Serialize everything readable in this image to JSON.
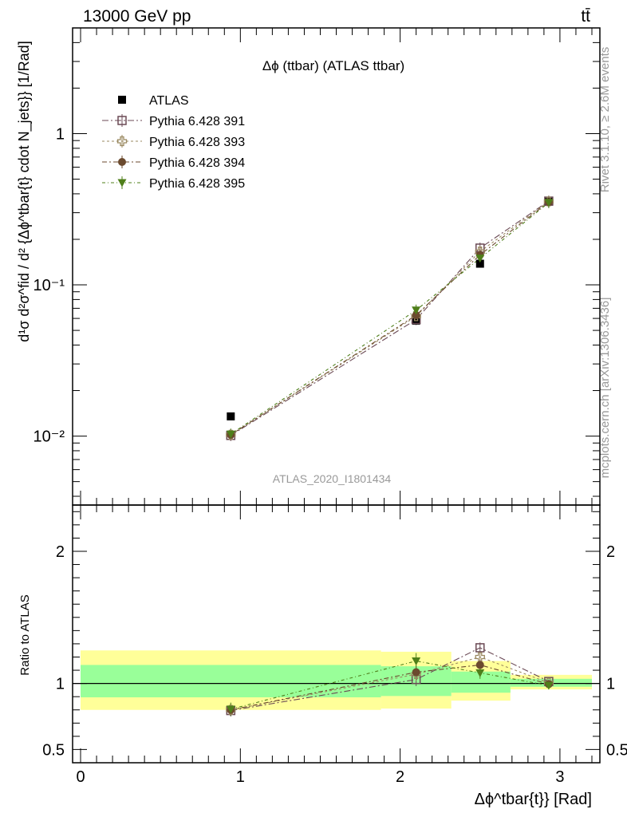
{
  "header": {
    "energy_label": "13000 GeV pp",
    "process_label": "tt̄"
  },
  "side_labels": {
    "rivet": "Rivet 3.1.10, ≥ 2.6M events",
    "mcplots": "mcplots.cern.ch [arXiv:1306.3436]"
  },
  "colors": {
    "atlas": "#000000",
    "p391": "#6b4a55",
    "p393": "#9b8a62",
    "p394": "#6b4a2e",
    "p395": "#4f7f1a",
    "band_green": "#99ff99",
    "band_yellow": "#ffff99"
  },
  "chart_data": [
    {
      "type": "scatter",
      "title": "Δϕ (ttbar) (ATLAS ttbar)",
      "watermark": "ATLAS_2020_I1801434",
      "ylabel": "d¹σ d²σ^fid / d² {Δϕ^tbar{t} cdot N_jets}} [1/Rad]",
      "yscale": "log",
      "ylim": [
        0.0035,
        5
      ],
      "xlim": [
        -0.05,
        3.25
      ],
      "y_ticks": [
        "1",
        "10⁻¹",
        "10⁻²"
      ],
      "x": [
        0.94,
        2.1,
        2.5,
        2.93
      ],
      "legend_location": "top-left",
      "series": [
        {
          "name": "ATLAS",
          "marker": "square-filled",
          "values": [
            0.0135,
            0.058,
            0.138,
            0.355
          ]
        },
        {
          "name": "Pythia 6.428 391",
          "marker": "square-open",
          "values": [
            0.0101,
            0.059,
            0.175,
            0.358
          ]
        },
        {
          "name": "Pythia 6.428 393",
          "marker": "cross-open",
          "values": [
            0.0102,
            0.062,
            0.166,
            0.356
          ]
        },
        {
          "name": "Pythia 6.428 394",
          "marker": "circle-filled",
          "values": [
            0.0102,
            0.063,
            0.158,
            0.353
          ]
        },
        {
          "name": "Pythia 6.428 395",
          "marker": "triangle-down-filled",
          "values": [
            0.0103,
            0.068,
            0.15,
            0.35
          ]
        }
      ]
    },
    {
      "type": "scatter",
      "ylabel": "Ratio to ATLAS",
      "xlabel": "Δϕ^tbar{t}} [Rad]",
      "ylim": [
        0.4,
        2.35
      ],
      "xlim": [
        -0.05,
        3.25
      ],
      "y_ticks": [
        0.5,
        1,
        2
      ],
      "x_ticks": [
        0,
        1,
        2,
        3
      ],
      "x": [
        0.94,
        2.1,
        2.5,
        2.93
      ],
      "bands": [
        {
          "x0": 0.0,
          "x1": 1.88,
          "green": [
            0.895,
            1.14
          ],
          "yellow": [
            0.8,
            1.25
          ]
        },
        {
          "x0": 1.88,
          "x1": 2.32,
          "green": [
            0.905,
            1.13
          ],
          "yellow": [
            0.81,
            1.24
          ]
        },
        {
          "x0": 2.32,
          "x1": 2.69,
          "green": [
            0.93,
            1.09
          ],
          "yellow": [
            0.87,
            1.17
          ]
        },
        {
          "x0": 2.69,
          "x1": 3.2,
          "green": [
            0.975,
            1.035
          ],
          "yellow": [
            0.955,
            1.065
          ]
        }
      ],
      "series": [
        {
          "name": "Pythia 6.428 391",
          "values": [
            0.795,
            1.03,
            1.27,
            1.015
          ],
          "errors": [
            0.045,
            0.05,
            0.04,
            0.015
          ]
        },
        {
          "name": "Pythia 6.428 393",
          "values": [
            0.8,
            1.07,
            1.2,
            1.005
          ],
          "errors": [
            0.045,
            0.05,
            0.04,
            0.015
          ]
        },
        {
          "name": "Pythia 6.428 394",
          "values": [
            0.8,
            1.085,
            1.14,
            0.995
          ],
          "errors": [
            0.045,
            0.05,
            0.04,
            0.015
          ]
        },
        {
          "name": "Pythia 6.428 395",
          "values": [
            0.805,
            1.17,
            1.08,
            0.985
          ],
          "errors": [
            0.05,
            0.06,
            0.045,
            0.015
          ]
        }
      ]
    }
  ]
}
